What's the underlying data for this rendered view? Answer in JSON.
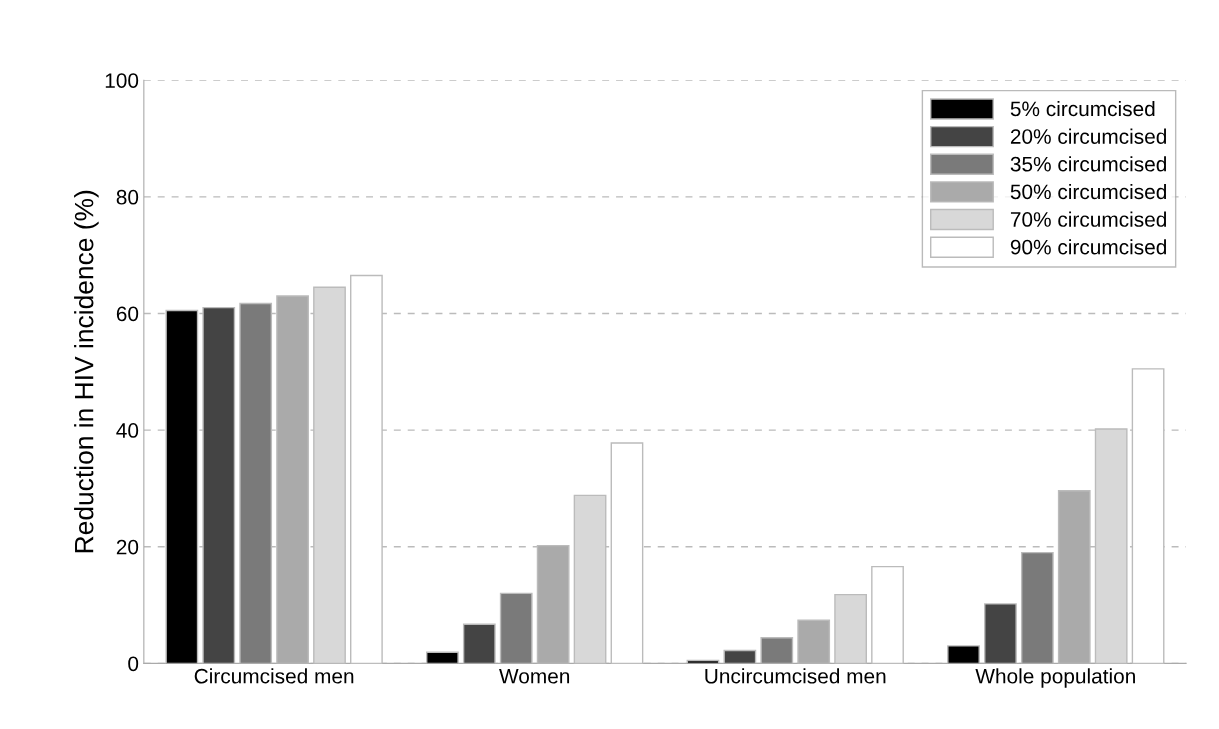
{
  "chart_data": {
    "type": "bar",
    "ylabel": "Reduction in HIV incidence (%)",
    "categories": [
      "Circumcised men",
      "Women",
      "Uncircumcised men",
      "Whole population"
    ],
    "series": [
      {
        "name": "5% circumcised",
        "color": "#000000",
        "values": [
          60.5,
          1.9,
          0.5,
          3.0
        ]
      },
      {
        "name": "20% circumcised",
        "color": "#444444",
        "values": [
          61.0,
          6.7,
          2.2,
          10.2
        ]
      },
      {
        "name": "35% circumcised",
        "color": "#7a7a7a",
        "values": [
          61.7,
          12.0,
          4.4,
          19.0
        ]
      },
      {
        "name": "50% circumcised",
        "color": "#aaaaaa",
        "values": [
          63.0,
          20.2,
          7.4,
          29.6
        ]
      },
      {
        "name": "70% circumcised",
        "color": "#d8d8d8",
        "values": [
          64.5,
          28.8,
          11.8,
          40.2
        ]
      },
      {
        "name": "90% circumcised",
        "color": "#ffffff",
        "values": [
          66.5,
          37.8,
          16.6,
          50.5
        ]
      }
    ],
    "ylim": [
      0,
      100
    ],
    "yticks": [
      0,
      20,
      40,
      60,
      80,
      100
    ],
    "grid": "y",
    "legend": "top right"
  }
}
